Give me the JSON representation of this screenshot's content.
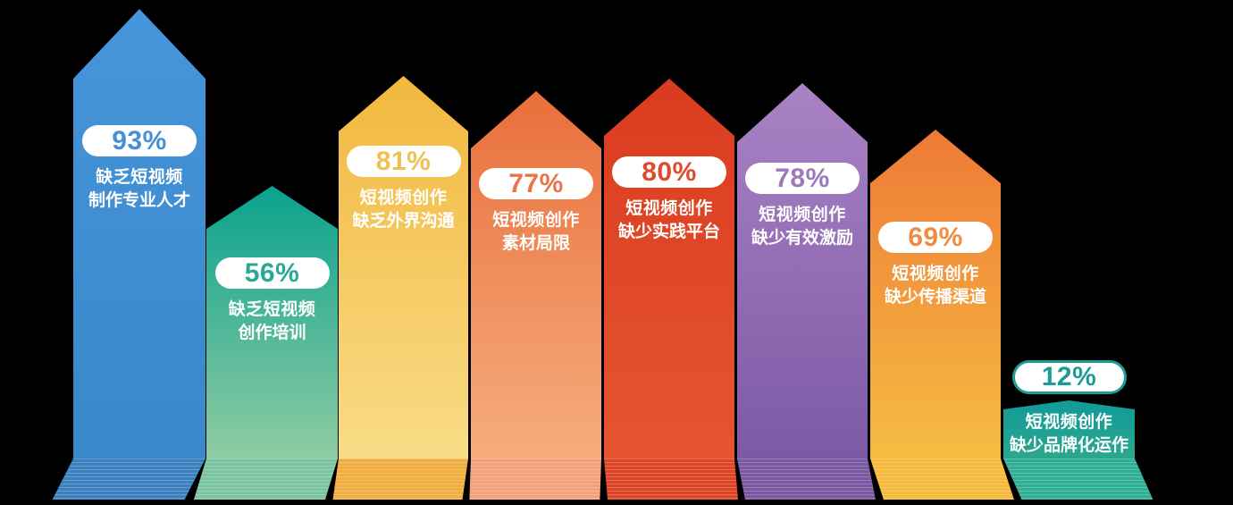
{
  "page": {
    "background_color": "#000000",
    "description": "短视频创作困难因素占比图"
  },
  "chart_data": {
    "type": "bar",
    "title": "",
    "unit": "%",
    "value_range": [
      0,
      100
    ],
    "grid": false,
    "legend": "none",
    "categories": [
      "缺乏短视频制作专业人才",
      "缺乏短视频创作培训",
      "短视频创作缺乏外界沟通",
      "短视频创作素材局限",
      "短视频创作缺少实践平台",
      "短视频创作缺少有效激励",
      "短视频创作缺少传播渠道",
      "短视频创作缺少品牌化运作"
    ],
    "values": [
      93,
      56,
      81,
      77,
      80,
      78,
      69,
      12
    ],
    "bars": [
      {
        "value": 93,
        "pct_label": "93%",
        "label_line1": "缺乏短视频",
        "label_line2": "制作专业人才",
        "color_top": "#4795DA",
        "color_bottom": "#3A87C9",
        "badge_text_color": "#4591D7",
        "badge_border_color": "",
        "base_color": "#3C80C0"
      },
      {
        "value": 56,
        "pct_label": "56%",
        "label_line1": "缺乏短视频",
        "label_line2": "创作培训",
        "color_top": "#0AA28D",
        "color_bottom": "#8FCBA3",
        "badge_text_color": "#2AA894",
        "badge_border_color": "",
        "base_color": "#7BC4A2"
      },
      {
        "value": 81,
        "pct_label": "81%",
        "label_line1": "短视频创作",
        "label_line2": "缺乏外界沟通",
        "color_top": "#F2B83E",
        "color_bottom": "#F8DC86",
        "badge_text_color": "#EFC155",
        "badge_border_color": "",
        "base_color": "#F1AE40"
      },
      {
        "value": 77,
        "pct_label": "77%",
        "label_line1": "短视频创作",
        "label_line2": "素材局限",
        "color_top": "#E86F3B",
        "color_bottom": "#F6AC7D",
        "badge_text_color": "#E87549",
        "badge_border_color": "",
        "base_color": "#F2A078"
      },
      {
        "value": 80,
        "pct_label": "80%",
        "label_line1": "短视频创作",
        "label_line2": "缺少实践平台",
        "color_top": "#DA3B1F",
        "color_bottom": "#E5552F",
        "badge_text_color": "#DF4A2B",
        "badge_border_color": "",
        "base_color": "#DD4526"
      },
      {
        "value": 78,
        "pct_label": "78%",
        "label_line1": "短视频创作",
        "label_line2": "缺少有效激励",
        "color_top": "#AA82C5",
        "color_bottom": "#7C5AA5",
        "badge_text_color": "#9D78BB",
        "badge_border_color": "",
        "base_color": "#7A58A2"
      },
      {
        "value": 69,
        "pct_label": "69%",
        "label_line1": "短视频创作",
        "label_line2": "缺少传播渠道",
        "color_top": "#EE7A36",
        "color_bottom": "#F5BC42",
        "badge_text_color": "#F08B41",
        "badge_border_color": "",
        "base_color": "#F5B93B"
      },
      {
        "value": 12,
        "pct_label": "12%",
        "label_line1": "短视频创作",
        "label_line2": "缺少品牌化运作",
        "color_top": "#109A99",
        "color_bottom": "#2CA78E",
        "badge_text_color": "#1D9C97",
        "badge_border_color": "#1D9C97",
        "base_color": "#30AE95"
      }
    ]
  }
}
